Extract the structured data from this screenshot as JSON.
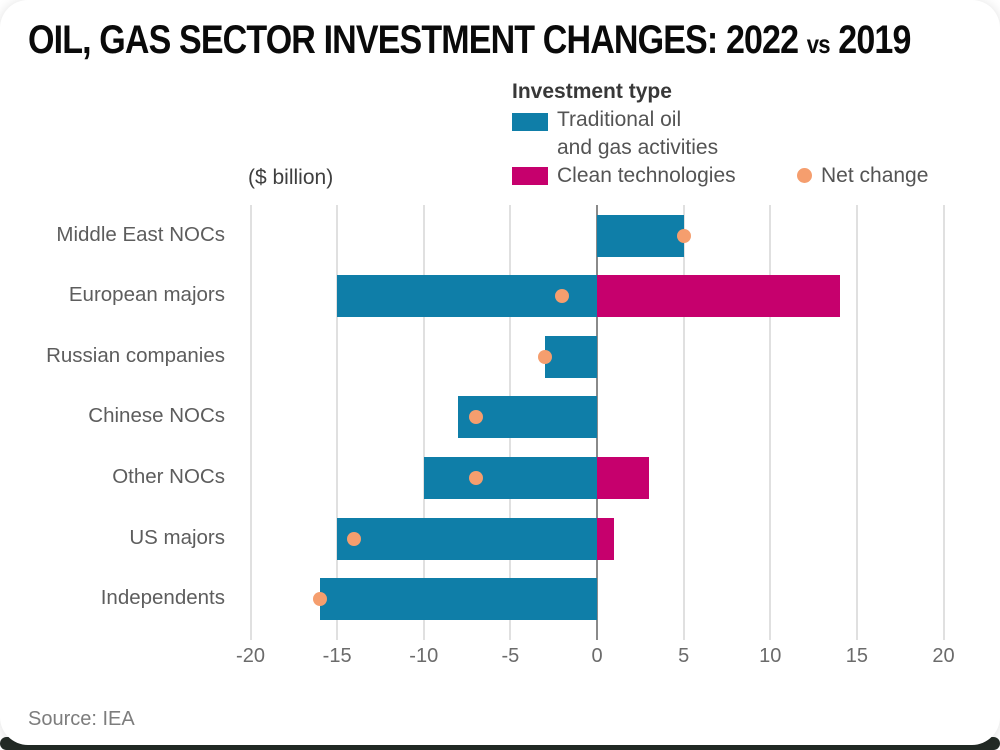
{
  "title": {
    "part1": "OIL, GAS SECTOR INVESTMENT CHANGES: 2022",
    "vs": "vs",
    "part2": "2019"
  },
  "axis_unit_label": "($ billion)",
  "legend": {
    "title": "Investment type",
    "traditional_line1": "Traditional oil",
    "traditional_line2": "and gas activities",
    "clean_label": "Clean technologies",
    "net_label": "Net change"
  },
  "colors": {
    "traditional": "#0f7ea8",
    "clean": "#c6006d",
    "net": "#f59e6e",
    "zero_line": "#8a8a8a",
    "gridline": "#e0e0e0"
  },
  "source": "Source: IEA",
  "chart_data": {
    "type": "bar",
    "orientation": "horizontal",
    "title": "OIL, GAS SECTOR INVESTMENT CHANGES: 2022 vs 2019",
    "xlabel": "($ billion)",
    "xlim": [
      -21,
      21
    ],
    "xticks": [
      -20,
      -15,
      -10,
      -5,
      0,
      5,
      10,
      15,
      20
    ],
    "grid": true,
    "legend_position": "top",
    "categories": [
      "Middle East NOCs",
      "European majors",
      "Russian companies",
      "Chinese NOCs",
      "Other NOCs",
      "US majors",
      "Independents"
    ],
    "series": [
      {
        "name": "Traditional oil and gas activities",
        "style": "bar",
        "color": "#0f7ea8",
        "values": [
          5,
          -15,
          -3,
          -8,
          -10,
          -15,
          -16
        ]
      },
      {
        "name": "Clean technologies",
        "style": "bar",
        "color": "#c6006d",
        "values": [
          0,
          14,
          0,
          0,
          3,
          1,
          0
        ]
      },
      {
        "name": "Net change",
        "style": "point",
        "color": "#f59e6e",
        "values": [
          5,
          -2,
          -3,
          -7,
          -7,
          -14,
          -16
        ]
      }
    ]
  }
}
